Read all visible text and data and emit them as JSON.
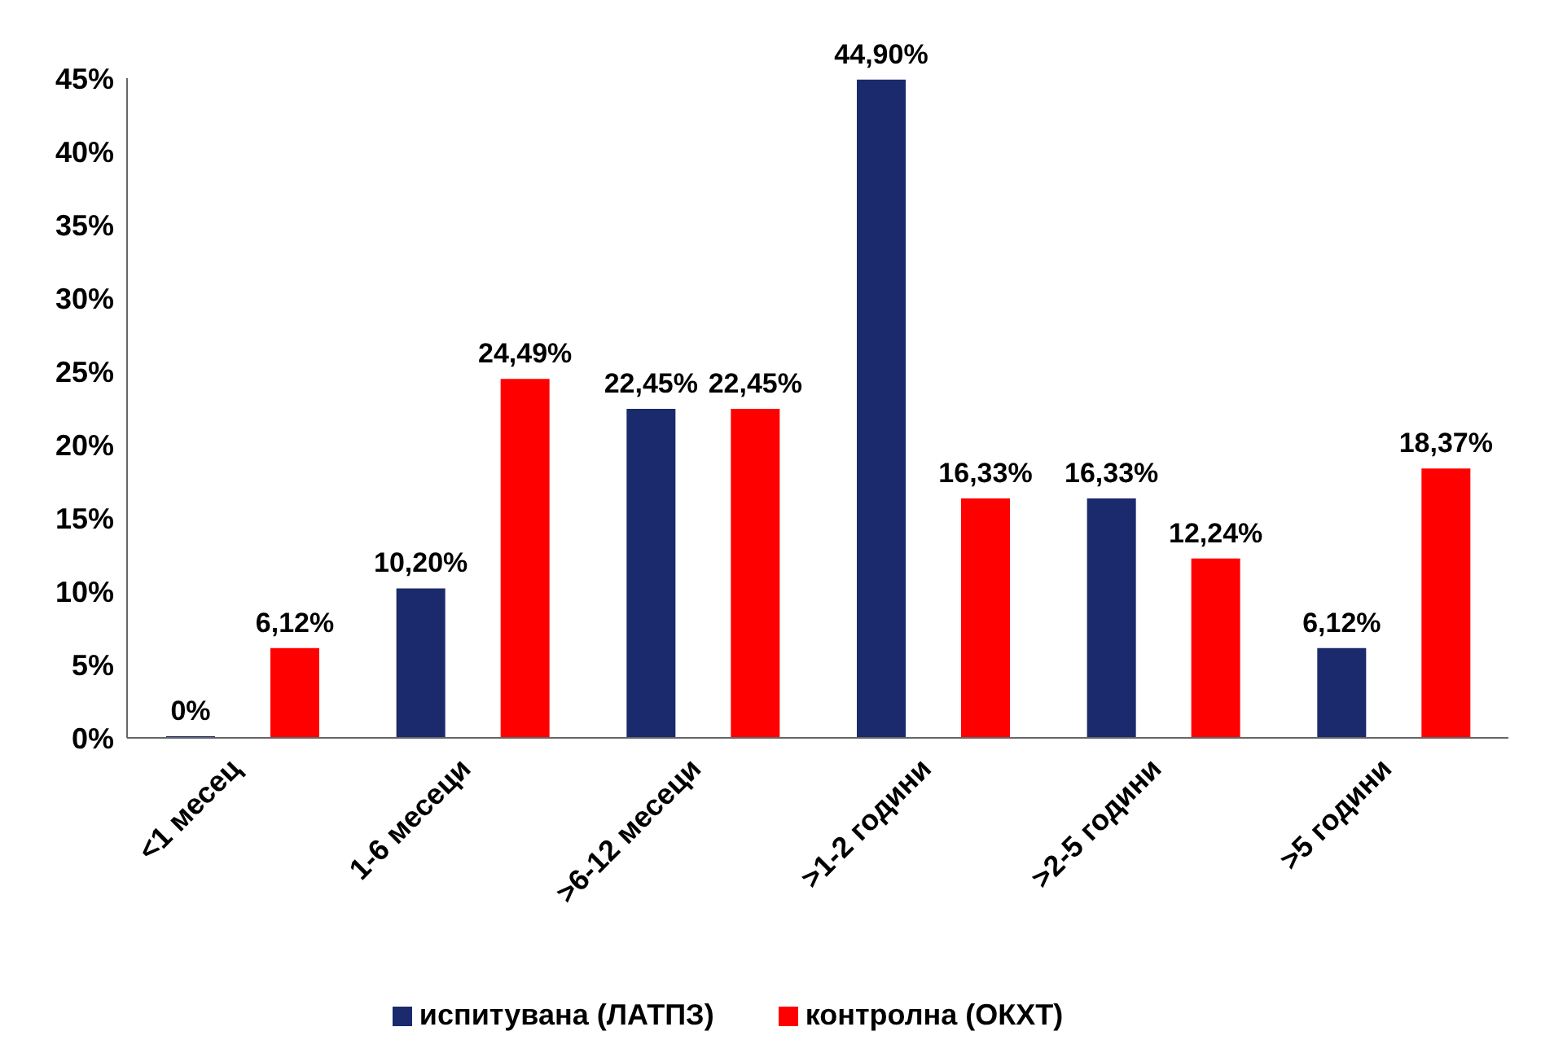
{
  "chart_data": {
    "type": "bar",
    "categories": [
      "<1 месец",
      "1-6 месеци",
      ">6-12 месеци",
      ">1-2 години",
      ">2-5 години",
      ">5 години"
    ],
    "series": [
      {
        "name": "испитувана (ЛАТПЗ)",
        "color": "#1a2a6c",
        "values": [
          0,
          10.2,
          22.45,
          44.9,
          16.33,
          6.12
        ],
        "value_labels": [
          "0%",
          "10,20%",
          "22,45%",
          "44,90%",
          "16,33%",
          "6,12%"
        ]
      },
      {
        "name": "контролна (ОКХТ)",
        "color": "#ff0000",
        "values": [
          6.12,
          24.49,
          22.45,
          16.33,
          12.24,
          18.37
        ],
        "value_labels": [
          "6,12%",
          "24,49%",
          "22,45%",
          "16,33%",
          "12,24%",
          "18,37%"
        ]
      }
    ],
    "ylim": [
      0,
      45
    ],
    "yticks": [
      {
        "value": 0,
        "label": "0%"
      },
      {
        "value": 5,
        "label": "5%"
      },
      {
        "value": 10,
        "label": "10%"
      },
      {
        "value": 15,
        "label": "15%"
      },
      {
        "value": 20,
        "label": "20%"
      },
      {
        "value": 25,
        "label": "25%"
      },
      {
        "value": 30,
        "label": "30%"
      },
      {
        "value": 35,
        "label": "35%"
      },
      {
        "value": 40,
        "label": "40%"
      },
      {
        "value": 45,
        "label": "45%"
      }
    ],
    "grid": false,
    "legend": "bottom"
  }
}
